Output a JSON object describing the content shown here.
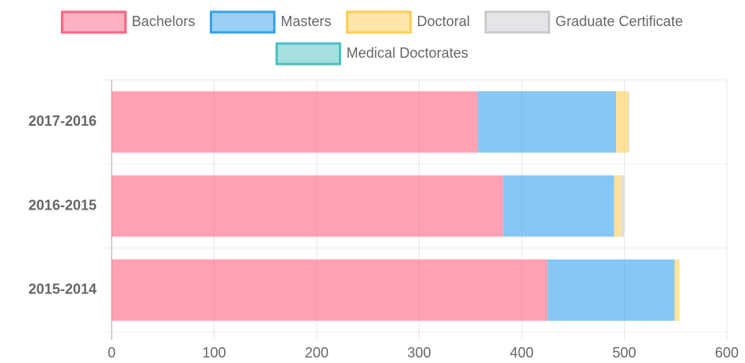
{
  "chart_data": {
    "type": "stacked-bar-horizontal",
    "categories": [
      "2017-2016",
      "2016-2015",
      "2015-2014"
    ],
    "series": [
      {
        "name": "Bachelors",
        "color": "#ff6384",
        "values": [
          357,
          382,
          425
        ]
      },
      {
        "name": "Masters",
        "color": "#36a2eb",
        "values": [
          135,
          108,
          124
        ]
      },
      {
        "name": "Doctoral",
        "color": "#ffcd56",
        "values": [
          12,
          7,
          5
        ]
      },
      {
        "name": "Graduate Certificate",
        "color": "#c9cbcf",
        "values": [
          1,
          3,
          0
        ]
      },
      {
        "name": "Medical Doctorates",
        "color": "#4bc0c0",
        "values": [
          0,
          0,
          0
        ]
      }
    ],
    "xlim": [
      0,
      600
    ],
    "xticks": [
      0,
      100,
      200,
      300,
      400,
      500,
      600
    ],
    "grid": true,
    "legend": "top"
  }
}
